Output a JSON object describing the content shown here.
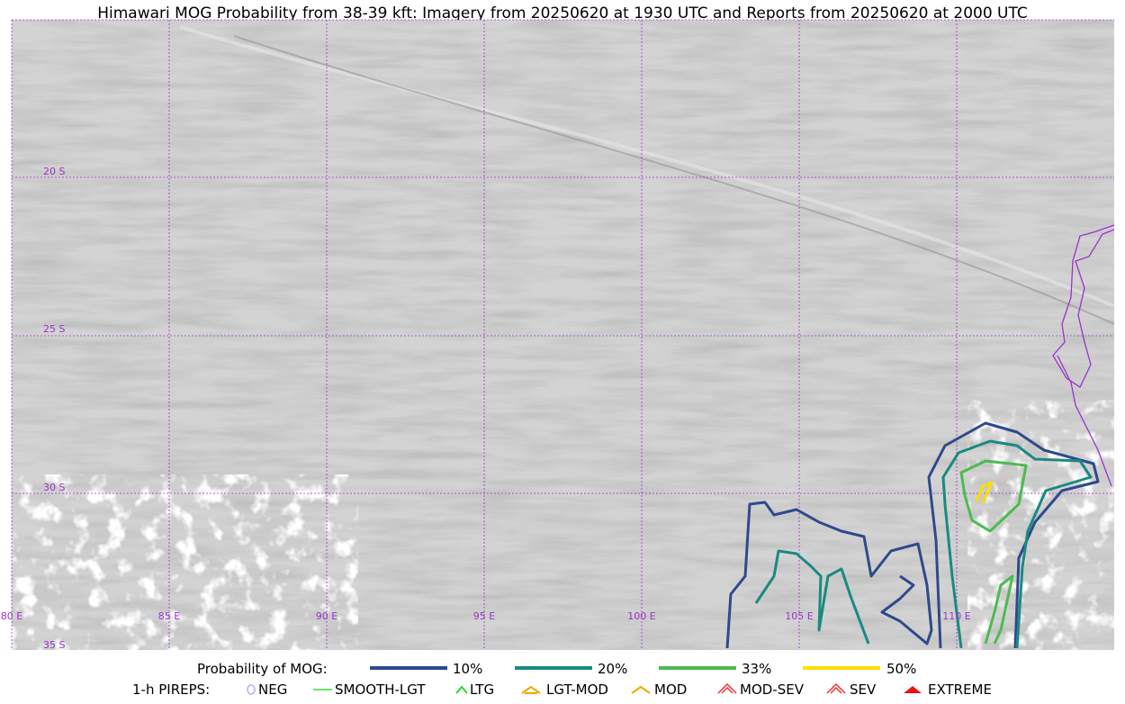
{
  "title": "Himawari MOG Probability from 38-39 kft: Imagery from 20250620 at 1930 UTC and Reports from 20250620 at 2000 UTC",
  "grid_labels": {
    "latitudes": [
      "20 S",
      "25 S",
      "30 S",
      "35 S"
    ],
    "longitudes": [
      "80 E",
      "85 E",
      "90 E",
      "95 E",
      "100 E",
      "105 E",
      "110 E"
    ]
  },
  "legend": {
    "probability": {
      "label": "Probability of MOG:",
      "items": [
        "10%",
        "20%",
        "33%",
        "50%"
      ]
    },
    "pireps": {
      "label": "1-h PIREPS:",
      "items": [
        "NEG",
        "SMOOTH-LGT",
        "LTG",
        "LGT-MOD",
        "MOD",
        "MOD-SEV",
        "SEV",
        "EXTREME"
      ]
    }
  }
}
